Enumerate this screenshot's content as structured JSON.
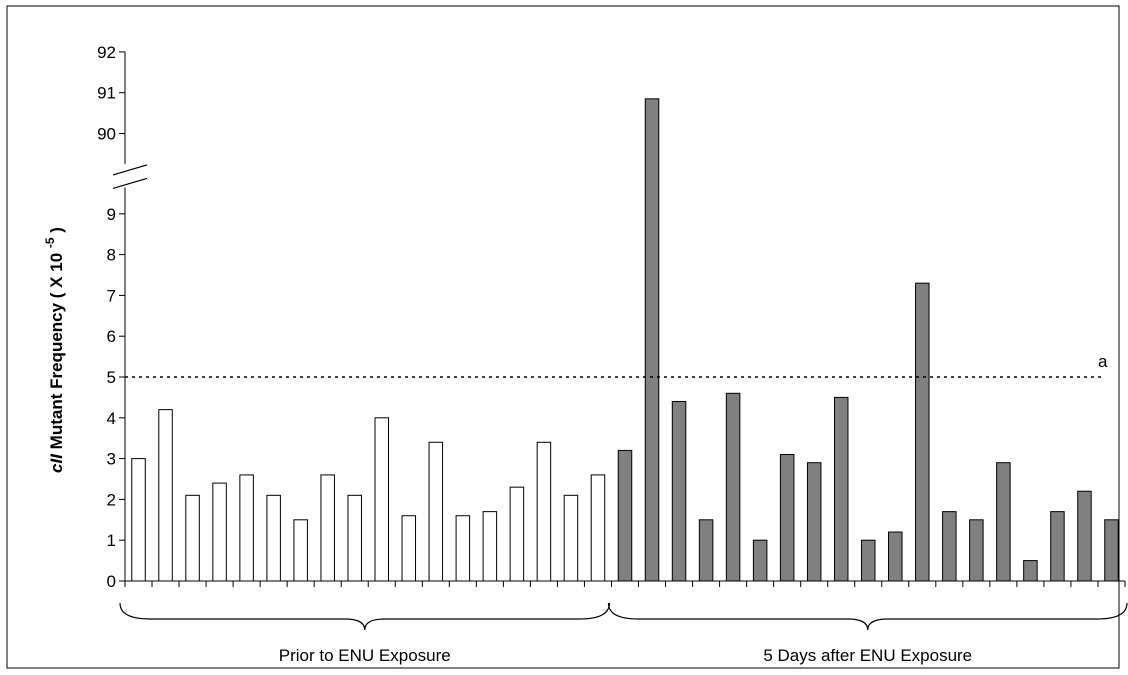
{
  "chart_data": {
    "type": "bar",
    "ylabel": {
      "italic_part": "cII",
      "text": " Mutant Frequency ( X 10 ",
      "superscript": "-5",
      "closing": " )"
    },
    "y_ticks_lower": [
      "0",
      "1",
      "2",
      "3",
      "4",
      "5",
      "6",
      "7",
      "8",
      "9"
    ],
    "y_ticks_upper": [
      "90",
      "91",
      "92"
    ],
    "axis_break": {
      "from": 9.5,
      "to": 89.5
    },
    "ylim_lower": [
      0,
      9.5
    ],
    "ylim_upper": [
      89.5,
      92
    ],
    "threshold": {
      "value": 5,
      "label": "a"
    },
    "groups": [
      {
        "label": "Prior to ENU Exposure",
        "color": "#ffffff",
        "values": [
          3.0,
          4.2,
          2.1,
          2.4,
          2.6,
          2.1,
          1.5,
          2.6,
          2.1,
          4.0,
          1.6,
          3.4,
          1.6,
          1.7,
          2.3,
          3.4,
          2.1,
          2.6
        ]
      },
      {
        "label": "5 Days after ENU Exposure",
        "color": "#808080",
        "values": [
          3.2,
          90.85,
          4.4,
          1.5,
          4.6,
          1.0,
          3.1,
          2.9,
          4.5,
          1.0,
          1.2,
          7.3,
          1.7,
          1.5,
          2.9,
          0.5,
          1.7,
          2.2,
          1.5
        ]
      }
    ]
  }
}
